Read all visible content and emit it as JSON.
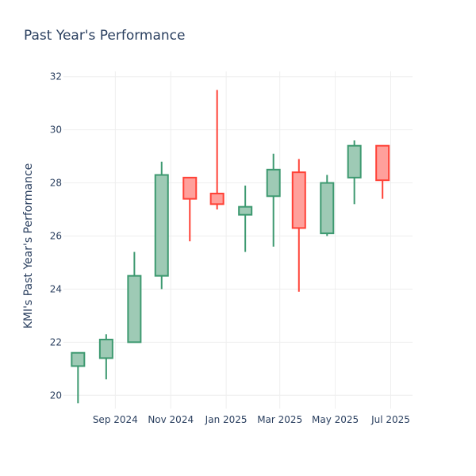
{
  "chart_data": {
    "type": "candlestick",
    "title": "Past Year's Performance",
    "ylabel": "KMI's Past Year's Performance",
    "xlabel": "",
    "ylim": [
      19.5,
      32.2
    ],
    "y_ticks": [
      20,
      22,
      24,
      26,
      28,
      30,
      32
    ],
    "x_range": [
      "2024-07-06",
      "2025-07-25"
    ],
    "x_ticks": [
      {
        "date": "2024-09-01",
        "label": "Sep 2024"
      },
      {
        "date": "2024-11-01",
        "label": "Nov 2024"
      },
      {
        "date": "2025-01-01",
        "label": "Jan 2025"
      },
      {
        "date": "2025-03-01",
        "label": "Mar 2025"
      },
      {
        "date": "2025-05-01",
        "label": "May 2025"
      },
      {
        "date": "2025-07-01",
        "label": "Jul 2025"
      }
    ],
    "grid": true,
    "legend": "none",
    "colors": {
      "increasing_line": "#3d9970",
      "increasing_fill": "#9ecab5",
      "decreasing_line": "#ff4136",
      "decreasing_fill": "#ffa09b",
      "grid": "#eeeeee",
      "text": "#2a3f5f"
    },
    "candles": [
      {
        "date": "2024-07-22",
        "open": 21.1,
        "high": 21.6,
        "low": 19.7,
        "close": 21.6
      },
      {
        "date": "2024-08-22",
        "open": 21.4,
        "high": 22.3,
        "low": 20.6,
        "close": 22.1
      },
      {
        "date": "2024-09-22",
        "open": 22.0,
        "high": 25.4,
        "low": 22.0,
        "close": 24.5
      },
      {
        "date": "2024-10-22",
        "open": 24.5,
        "high": 28.8,
        "low": 24.0,
        "close": 28.3
      },
      {
        "date": "2024-11-22",
        "open": 28.2,
        "high": 28.2,
        "low": 25.8,
        "close": 27.4
      },
      {
        "date": "2024-12-22",
        "open": 27.6,
        "high": 31.5,
        "low": 27.0,
        "close": 27.2
      },
      {
        "date": "2025-01-22",
        "open": 26.8,
        "high": 27.9,
        "low": 25.4,
        "close": 27.1
      },
      {
        "date": "2025-02-22",
        "open": 27.5,
        "high": 29.1,
        "low": 25.6,
        "close": 28.5
      },
      {
        "date": "2025-03-22",
        "open": 28.4,
        "high": 28.9,
        "low": 23.9,
        "close": 26.3
      },
      {
        "date": "2025-04-22",
        "open": 26.1,
        "high": 28.3,
        "low": 26.0,
        "close": 28.0
      },
      {
        "date": "2025-05-22",
        "open": 28.2,
        "high": 29.6,
        "low": 27.2,
        "close": 29.4
      },
      {
        "date": "2025-06-22",
        "open": 29.4,
        "high": 29.4,
        "low": 27.4,
        "close": 28.1
      }
    ]
  }
}
